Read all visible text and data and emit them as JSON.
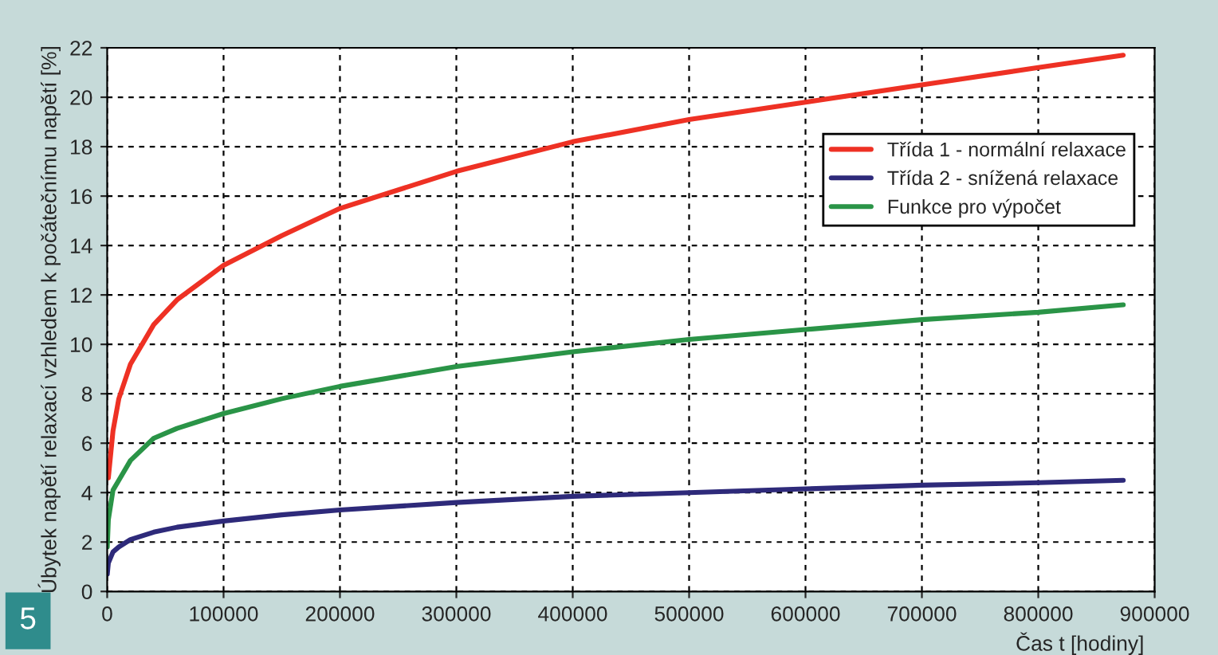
{
  "chart_data": {
    "type": "line",
    "xlabel": "Čas t [hodiny]",
    "ylabel": "Úbytek napětí relaxací vzhledem k počátečnímu napětí [%]",
    "annotations": [
      "5"
    ],
    "x": [
      100,
      1000,
      5000,
      10000,
      20000,
      40000,
      60000,
      100000,
      150000,
      200000,
      300000,
      400000,
      500000,
      600000,
      700000,
      800000,
      873000
    ],
    "series": [
      {
        "name": "Třída 1 - normální relaxace",
        "color": "#ee3124",
        "values": [
          null,
          4.6,
          6.5,
          7.8,
          9.2,
          10.8,
          11.8,
          13.2,
          14.4,
          15.5,
          17.0,
          18.2,
          19.1,
          19.8,
          20.5,
          21.2,
          21.7
        ]
      },
      {
        "name": "Třída 2 - snížená relaxace",
        "color": "#2e2a7a",
        "values": [
          0.7,
          1.15,
          1.6,
          1.8,
          2.1,
          2.4,
          2.6,
          2.85,
          3.1,
          3.3,
          3.6,
          3.85,
          4.0,
          4.15,
          4.3,
          4.4,
          4.5
        ]
      },
      {
        "name": "Funkce pro výpočet",
        "color": "#2a9447",
        "values": [
          1.8,
          2.9,
          4.1,
          4.5,
          5.3,
          6.2,
          6.6,
          7.2,
          7.8,
          8.3,
          9.1,
          9.7,
          10.2,
          10.6,
          11.0,
          11.3,
          11.6
        ]
      }
    ],
    "xlim": [
      0,
      900000
    ],
    "xticks": [
      0,
      100000,
      200000,
      300000,
      400000,
      500000,
      600000,
      700000,
      800000,
      900000
    ],
    "ylim": [
      0,
      22
    ],
    "yticks": [
      0,
      2,
      4,
      6,
      8,
      10,
      12,
      14,
      16,
      18,
      20,
      22
    ],
    "grid": true,
    "legend": "top right",
    "line_style": "solid",
    "marker": "none"
  }
}
